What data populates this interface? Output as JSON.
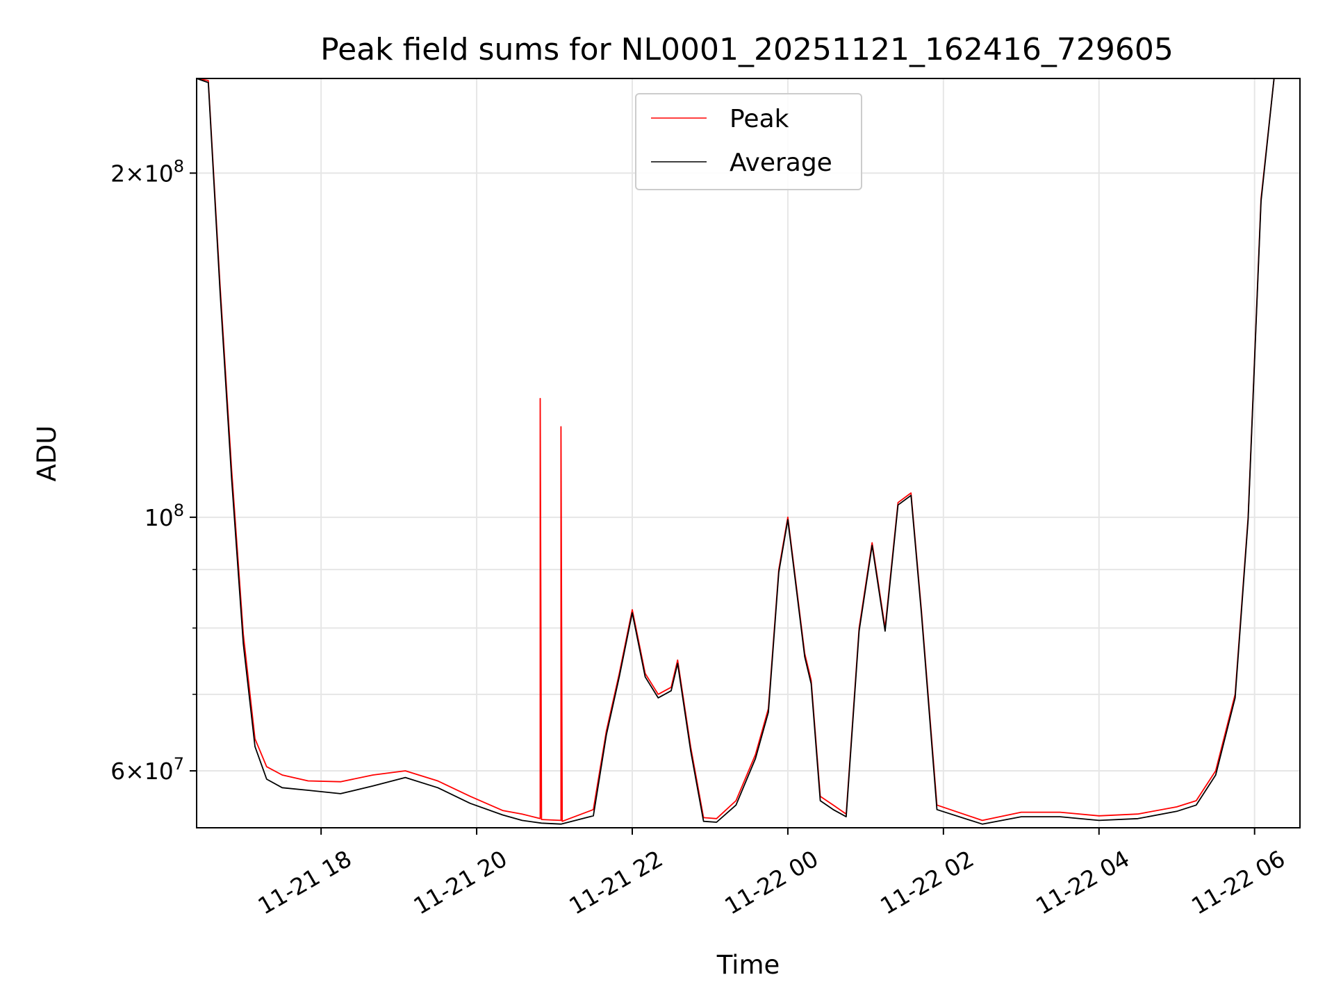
{
  "chart_data": {
    "type": "line",
    "title": "Peak field sums for NL0001_20251121_162416_729605",
    "xlabel": "Time",
    "ylabel": "ADU",
    "yscale": "log",
    "xlim": [
      "2025-11-21 16:24",
      "2025-11-22 06:35"
    ],
    "ylim": [
      53500000,
      242000000
    ],
    "grid": true,
    "legend_position": "upper center",
    "x_ticks": [
      {
        "value": "2025-11-21 18:00",
        "label": "11-21 18"
      },
      {
        "value": "2025-11-21 20:00",
        "label": "11-21 20"
      },
      {
        "value": "2025-11-21 22:00",
        "label": "11-21 22"
      },
      {
        "value": "2025-11-22 00:00",
        "label": "11-22 00"
      },
      {
        "value": "2025-11-22 02:00",
        "label": "11-22 02"
      },
      {
        "value": "2025-11-22 04:00",
        "label": "11-22 04"
      },
      {
        "value": "2025-11-22 06:00",
        "label": "11-22 06"
      }
    ],
    "y_major_ticks": [
      {
        "value": 60000000,
        "mantissa": "6",
        "exponent": "7"
      },
      {
        "value": 100000000,
        "mantissa": "",
        "exponent": "8"
      },
      {
        "value": 200000000,
        "mantissa": "2",
        "exponent": "8"
      }
    ],
    "y_minor_ticks": [
      70000000,
      80000000,
      90000000
    ],
    "series": [
      {
        "name": "Peak",
        "color": "#ff0000",
        "x": [
          "2025-11-21 16:24",
          "2025-11-21 16:33",
          "2025-11-21 16:42",
          "2025-11-21 16:51",
          "2025-11-21 17:00",
          "2025-11-21 17:09",
          "2025-11-21 17:18",
          "2025-11-21 17:30",
          "2025-11-21 17:50",
          "2025-11-21 18:15",
          "2025-11-21 18:40",
          "2025-11-21 19:05",
          "2025-11-21 19:30",
          "2025-11-21 19:55",
          "2025-11-21 20:20",
          "2025-11-21 20:35",
          "2025-11-21 20:49",
          "2025-11-21 20:49",
          "2025-11-21 20:50",
          "2025-11-21 21:05",
          "2025-11-21 21:05",
          "2025-11-21 21:06",
          "2025-11-21 21:30",
          "2025-11-21 21:40",
          "2025-11-21 21:50",
          "2025-11-21 22:00",
          "2025-11-21 22:10",
          "2025-11-21 22:20",
          "2025-11-21 22:30",
          "2025-11-21 22:35",
          "2025-11-21 22:45",
          "2025-11-21 22:55",
          "2025-11-21 23:05",
          "2025-11-21 23:20",
          "2025-11-21 23:35",
          "2025-11-21 23:45",
          "2025-11-21 23:53",
          "2025-11-22 00:00",
          "2025-11-22 00:13",
          "2025-11-22 00:18",
          "2025-11-22 00:25",
          "2025-11-22 00:35",
          "2025-11-22 00:45",
          "2025-11-22 00:55",
          "2025-11-22 01:05",
          "2025-11-22 01:15",
          "2025-11-22 01:25",
          "2025-11-22 01:35",
          "2025-11-22 01:43",
          "2025-11-22 01:55",
          "2025-11-22 02:30",
          "2025-11-22 03:00",
          "2025-11-22 03:30",
          "2025-11-22 04:00",
          "2025-11-22 04:30",
          "2025-11-22 05:00",
          "2025-11-22 05:15",
          "2025-11-22 05:30",
          "2025-11-22 05:45",
          "2025-11-22 05:55",
          "2025-11-22 06:05",
          "2025-11-22 06:15"
        ],
        "y": [
          242000000,
          241000000,
          160000000,
          110000000,
          79000000,
          64000000,
          60500000,
          59500000,
          58800000,
          58700000,
          59500000,
          60000000,
          58800000,
          57000000,
          55400000,
          55000000,
          54500000,
          127000000,
          54400000,
          54300000,
          120000000,
          54200000,
          55500000,
          65000000,
          73000000,
          83000000,
          73000000,
          70000000,
          71000000,
          75000000,
          63000000,
          54600000,
          54500000,
          56500000,
          62000000,
          68000000,
          90000000,
          100000000,
          76000000,
          72000000,
          57000000,
          56000000,
          55000000,
          80000000,
          95000000,
          80000000,
          103000000,
          105000000,
          83000000,
          56000000,
          54300000,
          55200000,
          55200000,
          54800000,
          55000000,
          55800000,
          56500000,
          60000000,
          70000000,
          100000000,
          190000000,
          242000000
        ]
      },
      {
        "name": "Average",
        "color": "#000000",
        "x": [
          "2025-11-21 16:24",
          "2025-11-21 16:33",
          "2025-11-21 16:42",
          "2025-11-21 16:51",
          "2025-11-21 17:00",
          "2025-11-21 17:09",
          "2025-11-21 17:18",
          "2025-11-21 17:30",
          "2025-11-21 17:50",
          "2025-11-21 18:15",
          "2025-11-21 18:40",
          "2025-11-21 19:05",
          "2025-11-21 19:30",
          "2025-11-21 19:55",
          "2025-11-21 20:20",
          "2025-11-21 20:35",
          "2025-11-21 20:50",
          "2025-11-21 21:05",
          "2025-11-21 21:30",
          "2025-11-21 21:40",
          "2025-11-21 21:50",
          "2025-11-21 22:00",
          "2025-11-21 22:10",
          "2025-11-21 22:20",
          "2025-11-21 22:30",
          "2025-11-21 22:35",
          "2025-11-21 22:45",
          "2025-11-21 22:55",
          "2025-11-21 23:05",
          "2025-11-21 23:20",
          "2025-11-21 23:35",
          "2025-11-21 23:45",
          "2025-11-21 23:53",
          "2025-11-22 00:00",
          "2025-11-22 00:13",
          "2025-11-22 00:18",
          "2025-11-22 00:25",
          "2025-11-22 00:35",
          "2025-11-22 00:45",
          "2025-11-22 00:55",
          "2025-11-22 01:05",
          "2025-11-22 01:15",
          "2025-11-22 01:25",
          "2025-11-22 01:35",
          "2025-11-22 01:43",
          "2025-11-22 01:55",
          "2025-11-22 02:30",
          "2025-11-22 03:00",
          "2025-11-22 03:30",
          "2025-11-22 04:00",
          "2025-11-22 04:30",
          "2025-11-22 05:00",
          "2025-11-22 05:15",
          "2025-11-22 05:30",
          "2025-11-22 05:45",
          "2025-11-22 05:55",
          "2025-11-22 06:05",
          "2025-11-22 06:15"
        ],
        "y": [
          242000000,
          240000000,
          158000000,
          108000000,
          77500000,
          63000000,
          59000000,
          58000000,
          57700000,
          57300000,
          58200000,
          59200000,
          58000000,
          56200000,
          54900000,
          54300000,
          54000000,
          53900000,
          54800000,
          64500000,
          72500000,
          82500000,
          72500000,
          69500000,
          70500000,
          74500000,
          62500000,
          54200000,
          54100000,
          56000000,
          61500000,
          67500000,
          89500000,
          99500000,
          75500000,
          71500000,
          56500000,
          55500000,
          54700000,
          79500000,
          94500000,
          79500000,
          102500000,
          104500000,
          82500000,
          55500000,
          53900000,
          54700000,
          54700000,
          54300000,
          54500000,
          55300000,
          56000000,
          59500000,
          69500000,
          99500000,
          189000000,
          242000000
        ]
      }
    ]
  }
}
